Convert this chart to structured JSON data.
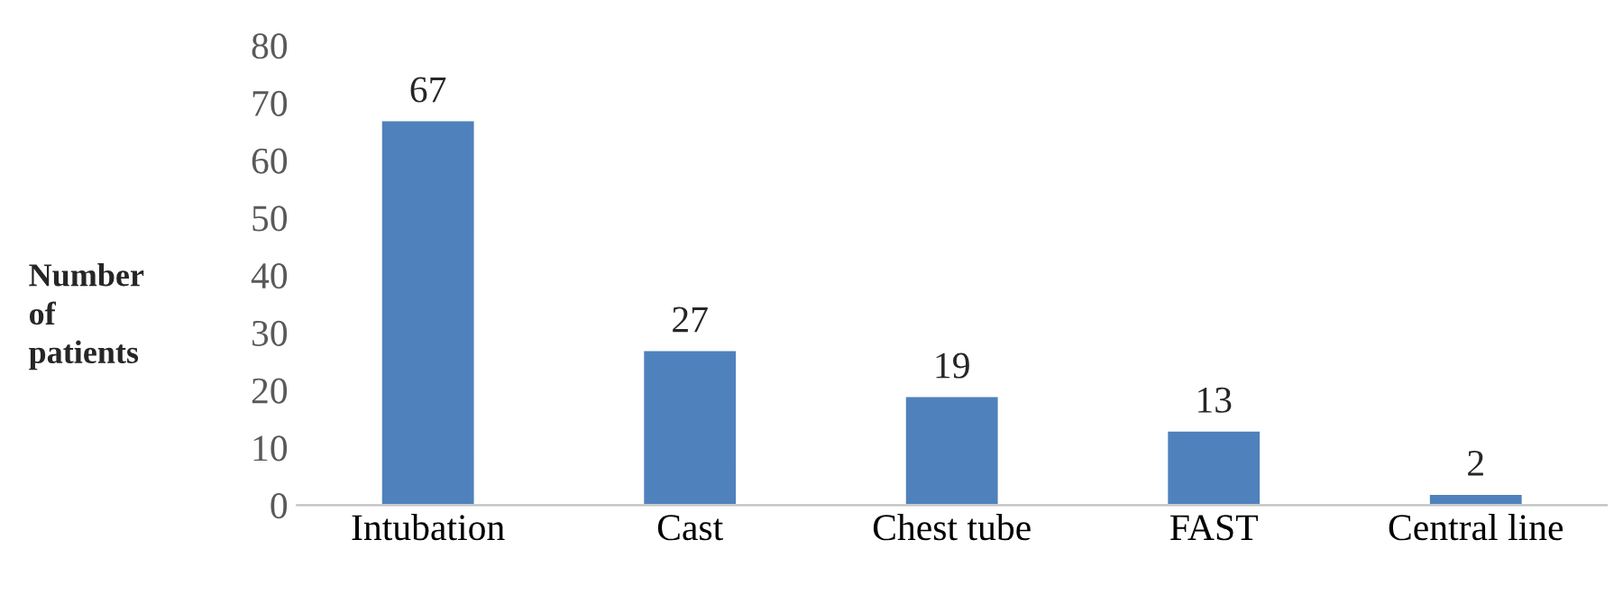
{
  "chart_data": {
    "type": "bar",
    "ylabel": "Number\nof\npatients",
    "categories": [
      "Intubation",
      "Cast",
      "Chest tube",
      "FAST",
      "Central line"
    ],
    "values": [
      67,
      27,
      19,
      13,
      2
    ],
    "color": "#4f81bd",
    "ylim": [
      0,
      80
    ],
    "yticks": [
      0,
      10,
      20,
      30,
      40,
      50,
      60,
      70,
      80
    ],
    "data_labels": true,
    "grid": false,
    "legend": false
  }
}
